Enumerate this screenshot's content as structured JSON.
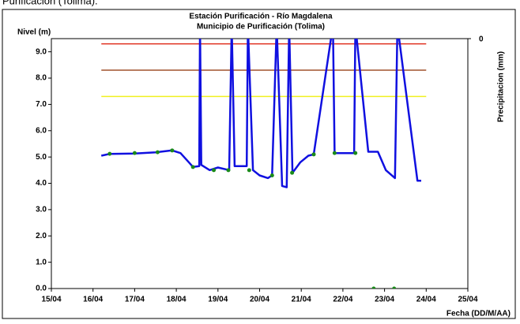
{
  "caption": "Purificación (Tolima).",
  "chart_data": {
    "type": "line",
    "title": "Estación Purificación - Río Magdalena",
    "subtitle": "Municipio de Purificación (Tolima)",
    "y_label": "Nivel (m)",
    "y2_label": "Precipitacion (mm)",
    "x_label": "Fecha (DD/M/AA)",
    "xlim": [
      15,
      25
    ],
    "xticks": [
      {
        "value": 15,
        "label": "15/04"
      },
      {
        "value": 16,
        "label": "16/04"
      },
      {
        "value": 17,
        "label": "17/04"
      },
      {
        "value": 18,
        "label": "18/04"
      },
      {
        "value": 19,
        "label": "19/04"
      },
      {
        "value": 20,
        "label": "20/04"
      },
      {
        "value": 21,
        "label": "21/04"
      },
      {
        "value": 22,
        "label": "22/04"
      },
      {
        "value": 23,
        "label": "23/04"
      },
      {
        "value": 24,
        "label": "24/04"
      },
      {
        "value": 25,
        "label": "25/04"
      }
    ],
    "ylim": [
      0,
      9.5
    ],
    "yticks": [
      {
        "value": 0,
        "label": "0.0"
      },
      {
        "value": 1,
        "label": "1.0"
      },
      {
        "value": 2,
        "label": "2.0"
      },
      {
        "value": 3,
        "label": "3.0"
      },
      {
        "value": 4,
        "label": "4.0"
      },
      {
        "value": 5,
        "label": "5.0"
      },
      {
        "value": 6,
        "label": "6.0"
      },
      {
        "value": 7,
        "label": "7.0"
      },
      {
        "value": 8,
        "label": "8.0"
      },
      {
        "value": 9,
        "label": "9.0"
      }
    ],
    "y2ticks": [
      0
    ],
    "y2_inverted": true,
    "reference_x": [
      16.2,
      24.0
    ],
    "reference_lines": [
      {
        "value": 9.3,
        "color": "#e03020"
      },
      {
        "value": 8.3,
        "color": "#a0522d"
      },
      {
        "value": 7.3,
        "color": "#f0f020"
      }
    ],
    "series": [
      {
        "color": "#1010e0",
        "mode": "line",
        "x": [
          16.2,
          16.4,
          17.0,
          17.5,
          17.9,
          18.1,
          18.3,
          18.4,
          18.55,
          18.57,
          18.6,
          18.8,
          19.0,
          19.27,
          19.33,
          19.4,
          19.69,
          19.72,
          19.84,
          20.0,
          20.2,
          20.3,
          20.41,
          20.54,
          20.65,
          20.71,
          20.79,
          20.98,
          21.17,
          21.3,
          21.76,
          21.8,
          22.27,
          22.3,
          22.61,
          22.84,
          23.03,
          23.25,
          23.31,
          23.79,
          23.88
        ],
        "values": [
          5.05,
          5.12,
          5.13,
          5.18,
          5.25,
          5.15,
          4.8,
          4.62,
          4.65,
          10,
          4.7,
          4.5,
          4.6,
          4.5,
          10,
          4.65,
          4.65,
          10,
          4.5,
          4.3,
          4.2,
          4.3,
          10,
          3.9,
          3.85,
          10,
          4.4,
          4.8,
          5.05,
          5.1,
          10,
          5.15,
          5.15,
          10,
          5.2,
          5.2,
          4.5,
          4.2,
          10,
          4.1,
          4.1
        ]
      },
      {
        "color": "#1a8a1a",
        "mode": "markers",
        "x": [
          16.4,
          17.0,
          17.55,
          17.9,
          18.4,
          18.9,
          19.25,
          19.75,
          20.3,
          20.78,
          21.3,
          21.8,
          22.3,
          22.74,
          23.23
        ],
        "values": [
          5.12,
          5.15,
          5.18,
          5.25,
          4.62,
          4.5,
          4.5,
          4.5,
          4.3,
          4.4,
          5.1,
          5.15,
          5.15,
          0,
          0
        ]
      }
    ]
  }
}
